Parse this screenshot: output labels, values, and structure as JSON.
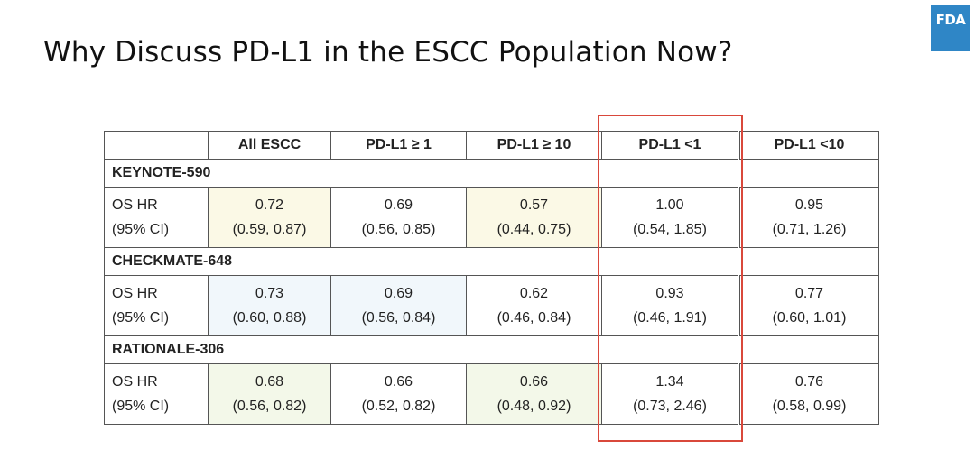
{
  "slide": {
    "title": "Why Discuss PD-L1 in the ESCC Population Now?",
    "logo_text": "FDA"
  },
  "table": {
    "headers": [
      "",
      "All ESCC",
      "PD-L1 ≥ 1",
      "PD-L1 ≥ 10",
      "PD-L1 <1",
      "PD-L1 <10"
    ],
    "metric_label": [
      "OS HR",
      "(95% CI)"
    ],
    "studies": [
      {
        "name": "KEYNOTE-590",
        "cells": [
          {
            "hr": "0.72",
            "ci": "(0.59, 0.87)"
          },
          {
            "hr": "0.69",
            "ci": "(0.56, 0.85)"
          },
          {
            "hr": "0.57",
            "ci": "(0.44, 0.75)"
          },
          {
            "hr": "1.00",
            "ci": "(0.54, 1.85)"
          },
          {
            "hr": "0.95",
            "ci": "(0.71, 1.26)"
          }
        ]
      },
      {
        "name": "CHECKMATE-648",
        "cells": [
          {
            "hr": "0.73",
            "ci": "(0.60, 0.88)"
          },
          {
            "hr": "0.69",
            "ci": "(0.56, 0.84)"
          },
          {
            "hr": "0.62",
            "ci": "(0.46, 0.84)"
          },
          {
            "hr": "0.93",
            "ci": "(0.46, 1.91)"
          },
          {
            "hr": "0.77",
            "ci": "(0.60, 1.01)"
          }
        ]
      },
      {
        "name": "RATIONALE-306",
        "cells": [
          {
            "hr": "0.68",
            "ci": "(0.56, 0.82)"
          },
          {
            "hr": "0.66",
            "ci": "(0.52, 0.82)"
          },
          {
            "hr": "0.66",
            "ci": "(0.48, 0.92)"
          },
          {
            "hr": "1.34",
            "ci": "(0.73, 2.46)"
          },
          {
            "hr": "0.76",
            "ci": "(0.58, 0.99)"
          }
        ]
      }
    ],
    "highlighted_column": "PD-L1 <1",
    "colors": {
      "highlight_box": "#d9483b",
      "cell_yellow": "#fbf9e6",
      "cell_green": "#f3f8e9",
      "cell_blue": "#f1f7fb",
      "fda_logo": "#2f86c6"
    }
  }
}
